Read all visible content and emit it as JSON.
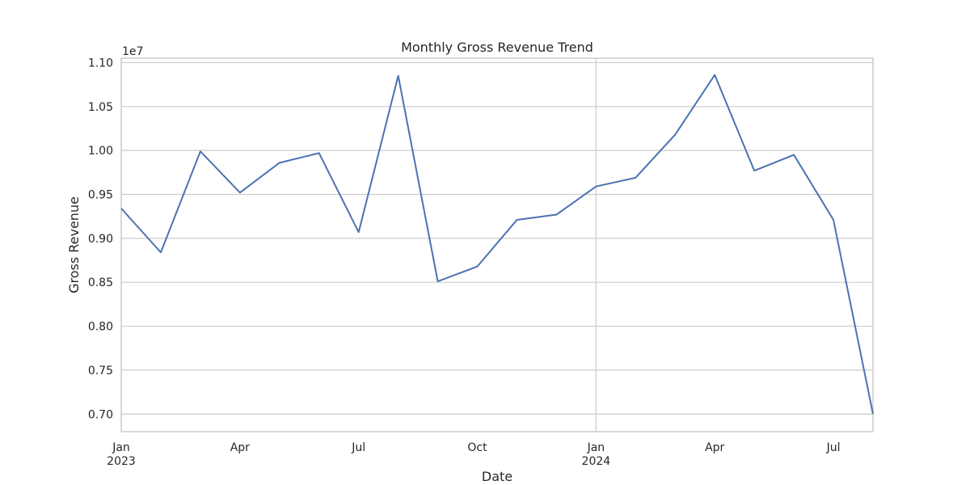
{
  "chart_data": {
    "type": "line",
    "title": "Monthly Gross Revenue Trend",
    "xlabel": "Date",
    "ylabel": "Gross Revenue",
    "y_offset_text": "1e7",
    "y_scale": 10000000,
    "x_start": "2023-01",
    "x_end": "2024-08",
    "ylim": [
      0.68,
      1.105
    ],
    "yticks": [
      0.7,
      0.75,
      0.8,
      0.85,
      0.9,
      0.95,
      1.0,
      1.05,
      1.1
    ],
    "ytick_labels": [
      "0.70",
      "0.75",
      "0.80",
      "0.85",
      "0.90",
      "0.95",
      "1.00",
      "1.05",
      "1.10"
    ],
    "xticks": [
      {
        "date": "2023-01",
        "label": "Jan",
        "year": "2023",
        "major": true
      },
      {
        "date": "2023-04",
        "label": "Apr",
        "year": "",
        "major": false
      },
      {
        "date": "2023-07",
        "label": "Jul",
        "year": "",
        "major": false
      },
      {
        "date": "2023-10",
        "label": "Oct",
        "year": "",
        "major": false
      },
      {
        "date": "2024-01",
        "label": "Jan",
        "year": "2024",
        "major": true
      },
      {
        "date": "2024-04",
        "label": "Apr",
        "year": "",
        "major": false
      },
      {
        "date": "2024-07",
        "label": "Jul",
        "year": "",
        "major": false
      }
    ],
    "grid": true,
    "line_color": "#4c72b0",
    "series": [
      {
        "x": [
          "2023-01",
          "2023-02",
          "2023-03",
          "2023-04",
          "2023-05",
          "2023-06",
          "2023-07",
          "2023-08",
          "2023-09",
          "2023-10",
          "2023-11",
          "2023-12",
          "2024-01",
          "2024-02",
          "2024-03",
          "2024-04",
          "2024-05",
          "2024-06",
          "2024-07",
          "2024-08"
        ],
        "values": [
          9340000,
          8840000,
          9990000,
          9520000,
          9860000,
          9970000,
          9070000,
          10850000,
          8510000,
          8680000,
          9210000,
          9270000,
          9590000,
          9690000,
          10180000,
          10860000,
          9770000,
          9950000,
          9210000,
          7000000
        ]
      }
    ]
  }
}
